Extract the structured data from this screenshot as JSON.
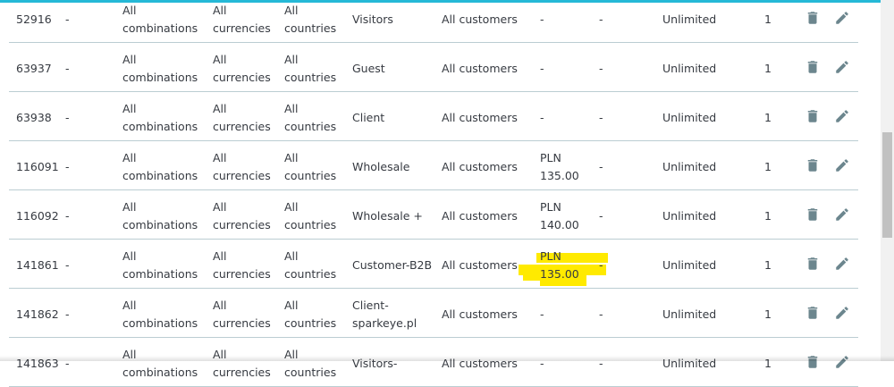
{
  "colors": {
    "accent": "#25b9d7",
    "highlight": "#ffea00",
    "icon": "#6c868e"
  },
  "rows": [
    {
      "id": "52916",
      "attr": "-",
      "combination": [
        "All",
        "combinations"
      ],
      "currency": [
        "All",
        "currencies"
      ],
      "country": [
        "All",
        "countries"
      ],
      "group": [
        "Visitors"
      ],
      "customer": "All customers",
      "price": [
        "-"
      ],
      "impact": "-",
      "period": "Unlimited",
      "from_qty": "1",
      "highlighted": false
    },
    {
      "id": "63937",
      "attr": "-",
      "combination": [
        "All",
        "combinations"
      ],
      "currency": [
        "All",
        "currencies"
      ],
      "country": [
        "All",
        "countries"
      ],
      "group": [
        "Guest"
      ],
      "customer": "All customers",
      "price": [
        "-"
      ],
      "impact": "-",
      "period": "Unlimited",
      "from_qty": "1",
      "highlighted": false
    },
    {
      "id": "63938",
      "attr": "-",
      "combination": [
        "All",
        "combinations"
      ],
      "currency": [
        "All",
        "currencies"
      ],
      "country": [
        "All",
        "countries"
      ],
      "group": [
        "Client"
      ],
      "customer": "All customers",
      "price": [
        "-"
      ],
      "impact": "-",
      "period": "Unlimited",
      "from_qty": "1",
      "highlighted": false
    },
    {
      "id": "116091",
      "attr": "-",
      "combination": [
        "All",
        "combinations"
      ],
      "currency": [
        "All",
        "currencies"
      ],
      "country": [
        "All",
        "countries"
      ],
      "group": [
        "Wholesale"
      ],
      "customer": "All customers",
      "price": [
        "PLN",
        "135.00"
      ],
      "impact": "-",
      "period": "Unlimited",
      "from_qty": "1",
      "highlighted": false
    },
    {
      "id": "116092",
      "attr": "-",
      "combination": [
        "All",
        "combinations"
      ],
      "currency": [
        "All",
        "currencies"
      ],
      "country": [
        "All",
        "countries"
      ],
      "group": [
        "Wholesale +"
      ],
      "customer": "All customers",
      "price": [
        "PLN",
        "140.00"
      ],
      "impact": "-",
      "period": "Unlimited",
      "from_qty": "1",
      "highlighted": false
    },
    {
      "id": "141861",
      "attr": "-",
      "combination": [
        "All",
        "combinations"
      ],
      "currency": [
        "All",
        "currencies"
      ],
      "country": [
        "All",
        "countries"
      ],
      "group": [
        "Customer-B2B"
      ],
      "customer": "All customers",
      "price": [
        "PLN",
        "135.00"
      ],
      "impact": "-",
      "period": "Unlimited",
      "from_qty": "1",
      "highlighted": true
    },
    {
      "id": "141862",
      "attr": "-",
      "combination": [
        "All",
        "combinations"
      ],
      "currency": [
        "All",
        "currencies"
      ],
      "country": [
        "All",
        "countries"
      ],
      "group": [
        "Client-",
        "sparkeye.pl"
      ],
      "customer": "All customers",
      "price": [
        "-"
      ],
      "impact": "-",
      "period": "Unlimited",
      "from_qty": "1",
      "highlighted": false
    },
    {
      "id": "141863",
      "attr": "-",
      "combination": [
        "All",
        "combinations"
      ],
      "currency": [
        "All",
        "currencies"
      ],
      "country": [
        "All",
        "countries"
      ],
      "group": [
        "Visitors-"
      ],
      "customer": "All customers",
      "price": [
        "-"
      ],
      "impact": "-",
      "period": "Unlimited",
      "from_qty": "1",
      "highlighted": false
    }
  ]
}
